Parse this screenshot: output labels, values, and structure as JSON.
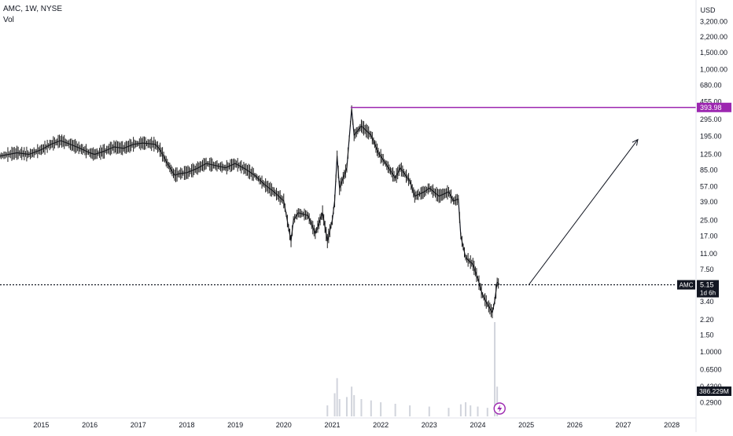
{
  "chart": {
    "symbol_line": "AMC, 1W, NYSE",
    "volume_label": "Vol",
    "currency": "USD"
  },
  "colors": {
    "candle": "#1c1c1c",
    "price_line": "#131722",
    "resistance": "#9c27b0",
    "axis_label_bg": "#131722",
    "axis_label_text": "#ffffff",
    "volume": "#d1d4dc",
    "axis_text": "#131722",
    "flash_icon": "#9c27b0"
  },
  "chart_data": {
    "type": "line",
    "title": "",
    "xlabel": "",
    "ylabel": "",
    "scale": "log",
    "grid": false,
    "x_ticks": [
      "2015",
      "2016",
      "2017",
      "2018",
      "2019",
      "2020",
      "2021",
      "2022",
      "2023",
      "2024",
      "2025",
      "2026",
      "2027",
      "2028"
    ],
    "y_ticks": [
      "3,200.00",
      "2,200.00",
      "1,500.00",
      "1,000.00",
      "680.00",
      "455.00",
      "295.00",
      "195.00",
      "125.00",
      "85.00",
      "57.00",
      "39.00",
      "25.00",
      "17.00",
      "11.00",
      "7.50",
      "3.40",
      "2.20",
      "1.50",
      "1.0000",
      "0.6500",
      "0.4300",
      "0.2900"
    ],
    "ylim": [
      0.25,
      4500
    ],
    "xlim": [
      2014.15,
      2028.5
    ],
    "series": [
      {
        "x": [
          2014.15,
          2014.5,
          2014.75,
          2015.0,
          2015.2,
          2015.4,
          2015.6,
          2015.8,
          2016.0,
          2016.1,
          2016.3,
          2016.5,
          2016.7,
          2016.9,
          2017.1,
          2017.35,
          2017.45,
          2017.6,
          2017.75,
          2017.85,
          2018.0,
          2018.2,
          2018.4,
          2018.6,
          2018.8,
          2019.0,
          2019.2,
          2019.4,
          2019.6,
          2019.8,
          2020.0,
          2020.15,
          2020.2,
          2020.3,
          2020.5,
          2020.65,
          2020.8,
          2020.9,
          2021.0,
          2021.05,
          2021.1,
          2021.15,
          2021.3,
          2021.4,
          2021.45,
          2021.6,
          2021.8,
          2021.95,
          2022.1,
          2022.3,
          2022.4,
          2022.6,
          2022.7,
          2022.9,
          2023.0,
          2023.2,
          2023.4,
          2023.5,
          2023.6,
          2023.65,
          2023.7,
          2023.75,
          2023.9,
          2024.0,
          2024.1,
          2024.2,
          2024.3,
          2024.35,
          2024.4,
          2024.45
        ],
        "values": [
          120,
          130,
          125,
          140,
          160,
          175,
          160,
          145,
          130,
          125,
          135,
          150,
          145,
          160,
          165,
          160,
          140,
          100,
          75,
          78,
          80,
          88,
          100,
          95,
          90,
          100,
          88,
          75,
          60,
          50,
          40,
          15,
          25,
          30,
          28,
          18,
          30,
          15,
          25,
          40,
          120,
          55,
          90,
          380,
          200,
          250,
          200,
          130,
          100,
          70,
          90,
          65,
          45,
          50,
          55,
          45,
          50,
          40,
          42,
          17,
          13,
          10,
          8.5,
          6,
          4,
          3.2,
          2.6,
          3.5,
          5.5,
          5.15
        ]
      }
    ],
    "volume": {
      "axis_label": "386.229M",
      "x": [
        2020.9,
        2021.05,
        2021.1,
        2021.15,
        2021.3,
        2021.4,
        2021.45,
        2021.6,
        2021.8,
        2022.0,
        2022.3,
        2022.6,
        2023.0,
        2023.4,
        2023.65,
        2023.75,
        2023.85,
        2024.0,
        2024.2,
        2024.35,
        2024.4
      ],
      "values": [
        12,
        40,
        90,
        25,
        30,
        60,
        35,
        25,
        22,
        18,
        15,
        12,
        10,
        8,
        14,
        18,
        12,
        10,
        8,
        386,
        60
      ]
    },
    "annotations": [
      {
        "type": "horizontal-line",
        "label": "393.98",
        "y": 393.98,
        "x_from": 2021.38,
        "x_to": 2028.5
      },
      {
        "type": "horizontal-line-dotted",
        "label": "AMC",
        "y": 5.15,
        "value_label": "5.15",
        "countdown": "1d 6h"
      },
      {
        "type": "arrow",
        "from": {
          "x": 2025.05,
          "y": 5.15
        },
        "to": {
          "x": 2027.3,
          "y": 180
        }
      }
    ]
  }
}
